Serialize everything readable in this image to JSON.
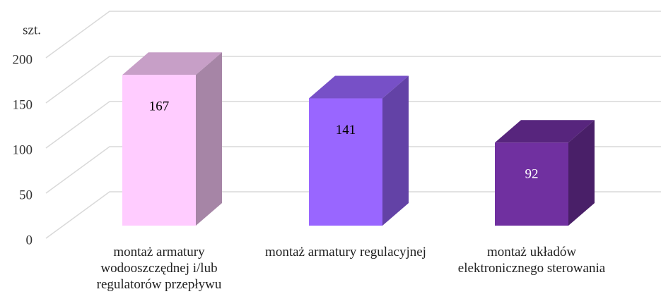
{
  "chart_data": {
    "type": "bar",
    "y_unit": "szt.",
    "categories": [
      "montaż armatury wodooszczędnej i/lub regulatorów przepływu",
      "montaż armatury regulacyjnej",
      "montaż układów elektronicznego sterowania"
    ],
    "values": [
      167,
      141,
      92
    ],
    "colors": [
      "#ffccff",
      "#9966ff",
      "#7030a0"
    ],
    "label_colors": [
      "#000000",
      "#000000",
      "#ffffff"
    ],
    "ylim": [
      0,
      200
    ],
    "yticks": [
      0,
      50,
      100,
      150,
      200
    ],
    "grid": true
  }
}
